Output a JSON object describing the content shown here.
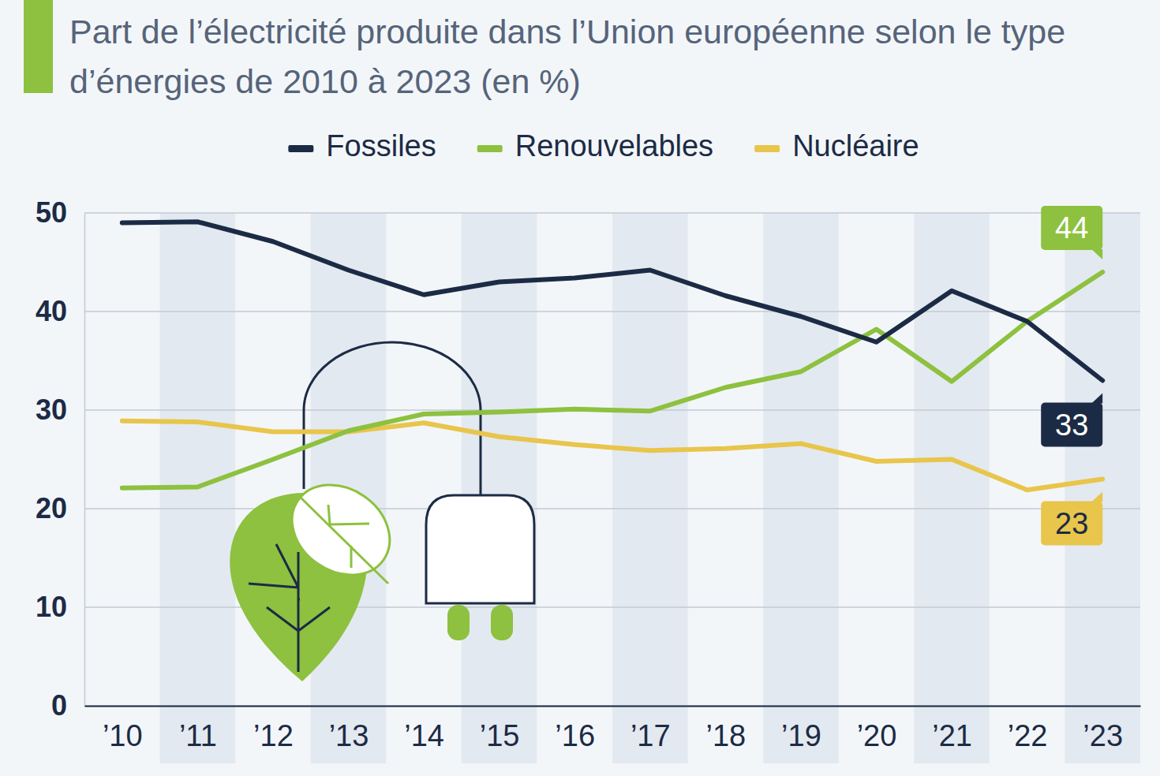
{
  "chart_data": {
    "type": "line",
    "title": "Part de l’électricité produite dans l’Union européenne selon le type d’énergies de 2010 à 2023 (en %)",
    "categories": [
      "’10",
      "’11",
      "’12",
      "’13",
      "’14",
      "’15",
      "’16",
      "’17",
      "’18",
      "’19",
      "’20",
      "’21",
      "’22",
      "’23"
    ],
    "series": [
      {
        "name": "Fossiles",
        "color": "#1c2b45",
        "values": [
          49,
          49.1,
          47.1,
          44.2,
          41.7,
          43,
          43.4,
          44.2,
          41.6,
          39.5,
          36.9,
          42.1,
          39,
          33
        ]
      },
      {
        "name": "Renouvelables",
        "color": "#8dc13f",
        "values": [
          22.1,
          22.2,
          25,
          27.9,
          29.6,
          29.8,
          30.1,
          29.9,
          32.3,
          33.9,
          38.2,
          32.9,
          39,
          44
        ]
      },
      {
        "name": "Nucléaire",
        "color": "#e8c54b",
        "values": [
          28.9,
          28.8,
          27.8,
          27.8,
          28.7,
          27.3,
          26.5,
          25.9,
          26.1,
          26.6,
          24.8,
          25,
          21.9,
          23
        ]
      }
    ],
    "ylim": [
      0,
      50
    ],
    "yticks": [
      0,
      10,
      20,
      30,
      40,
      50
    ],
    "grid": true,
    "legend": "top",
    "data_labels": true
  }
}
